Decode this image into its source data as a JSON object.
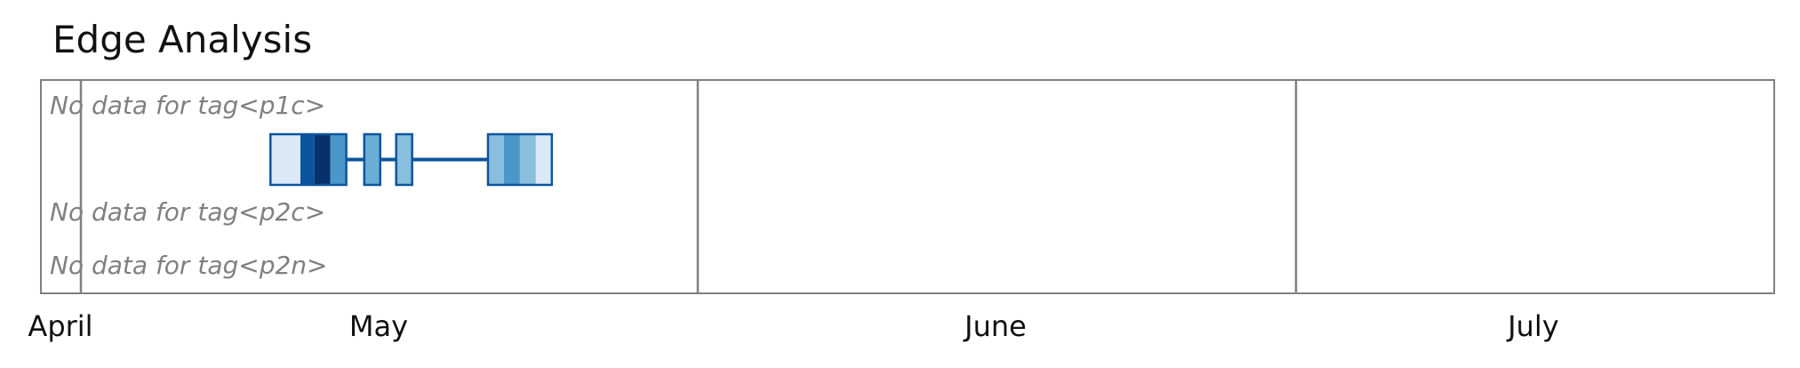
{
  "chart_data": {
    "type": "timeline",
    "title": "Edge Analysis",
    "x_axis": {
      "tick_labels": [
        "April",
        "May",
        "June",
        "July"
      ]
    },
    "rows": [
      {
        "tag": "p1c",
        "label": "No data for tag<p1c>"
      },
      {
        "tag": "",
        "label": ""
      },
      {
        "tag": "p2c",
        "label": "No data for tag<p2c>"
      },
      {
        "tag": "p2n",
        "label": "No data for tag<p2n>"
      }
    ],
    "timeline": {
      "line_color": "#0b559f",
      "segments": [
        {
          "start_day": 9.5,
          "end_day": 11.0,
          "color": "#dbe9f6"
        },
        {
          "start_day": 11.0,
          "end_day": 11.7,
          "color": "#0b559f"
        },
        {
          "start_day": 11.7,
          "end_day": 12.5,
          "color": "#08306b"
        },
        {
          "start_day": 12.5,
          "end_day": 13.3,
          "color": "#4a98c9"
        },
        {
          "start_day": 14.2,
          "end_day": 15.0,
          "color": "#6aaed6"
        },
        {
          "start_day": 15.8,
          "end_day": 16.6,
          "color": "#89bedc"
        },
        {
          "start_day": 20.4,
          "end_day": 21.2,
          "color": "#89bedc"
        },
        {
          "start_day": 21.2,
          "end_day": 22.0,
          "color": "#4a98c9"
        },
        {
          "start_day": 22.0,
          "end_day": 22.8,
          "color": "#89bedc"
        },
        {
          "start_day": 22.8,
          "end_day": 23.6,
          "color": "#dbe9f6"
        }
      ],
      "connectors": [
        {
          "start_day": 13.3,
          "end_day": 14.2
        },
        {
          "start_day": 15.0,
          "end_day": 15.8
        },
        {
          "start_day": 16.6,
          "end_day": 20.4
        }
      ]
    },
    "frame": {
      "border_color": "#808080"
    }
  }
}
